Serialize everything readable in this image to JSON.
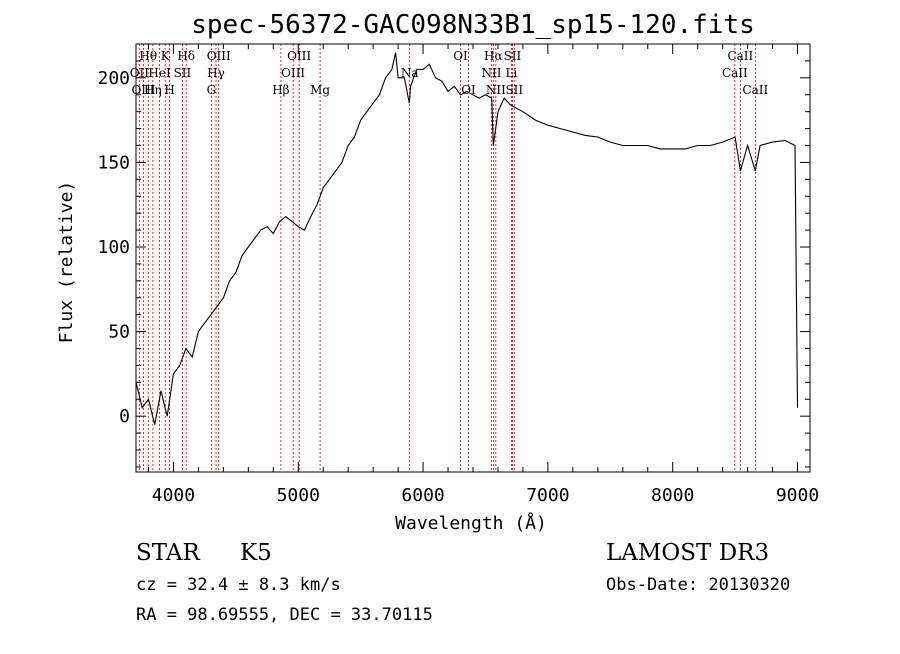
{
  "chart_data": {
    "type": "line",
    "title": "spec-56372-GAC098N33B1_sp15-120.fits",
    "xlabel": "Wavelength (Å)",
    "ylabel": "Flux (relative)",
    "xlim": [
      3700,
      9100
    ],
    "ylim": [
      -33,
      220
    ],
    "xticks": [
      4000,
      5000,
      6000,
      7000,
      8000,
      9000
    ],
    "yticks": [
      0,
      50,
      100,
      150,
      200
    ],
    "grid": false,
    "series": [
      {
        "x": [
          3700,
          3750,
          3800,
          3850,
          3900,
          3950,
          4000,
          4050,
          4100,
          4150,
          4200,
          4250,
          4300,
          4350,
          4400,
          4450,
          4500,
          4550,
          4600,
          4650,
          4700,
          4750,
          4800,
          4850,
          4900,
          4950,
          5000,
          5050,
          5100,
          5150,
          5200,
          5250,
          5300,
          5350,
          5400,
          5450,
          5500,
          5550,
          5600,
          5650,
          5700,
          5750,
          5780,
          5800,
          5850,
          5890,
          5900,
          5950,
          6000,
          6050,
          6100,
          6150,
          6200,
          6250,
          6300,
          6350,
          6400,
          6450,
          6500,
          6550,
          6563,
          6600,
          6650,
          6700,
          6750,
          6800,
          6900,
          7000,
          7100,
          7200,
          7300,
          7400,
          7500,
          7600,
          7700,
          7800,
          7900,
          8000,
          8100,
          8200,
          8300,
          8400,
          8500,
          8542,
          8600,
          8662,
          8700,
          8800,
          8900,
          8980,
          9000
        ],
        "y": [
          20,
          5,
          10,
          -5,
          15,
          0,
          25,
          30,
          40,
          35,
          50,
          55,
          60,
          65,
          70,
          80,
          85,
          95,
          100,
          105,
          110,
          112,
          108,
          115,
          118,
          115,
          112,
          110,
          118,
          125,
          135,
          140,
          145,
          150,
          160,
          165,
          175,
          180,
          185,
          190,
          200,
          205,
          215,
          200,
          200,
          185,
          195,
          205,
          205,
          208,
          200,
          198,
          192,
          195,
          190,
          192,
          190,
          188,
          190,
          188,
          160,
          180,
          188,
          184,
          182,
          180,
          175,
          172,
          170,
          168,
          166,
          165,
          162,
          160,
          160,
          160,
          158,
          158,
          158,
          160,
          160,
          162,
          165,
          145,
          160,
          145,
          160,
          162,
          163,
          160,
          5
        ]
      }
    ],
    "spectral_lines": [
      {
        "name": "Hθ",
        "x": 3798,
        "row": 0
      },
      {
        "name": "OII",
        "x": 3727,
        "row": 1
      },
      {
        "name": "OIII",
        "x": 3760,
        "row": 2
      },
      {
        "name": "Hη",
        "x": 3835,
        "row": 2
      },
      {
        "name": "HeI",
        "x": 3889,
        "row": 1
      },
      {
        "name": "K",
        "x": 3934,
        "row": 0
      },
      {
        "name": "H",
        "x": 3969,
        "row": 2
      },
      {
        "name": "SII",
        "x": 4072,
        "row": 1
      },
      {
        "name": "Hδ",
        "x": 4102,
        "row": 0
      },
      {
        "name": "OIII",
        "x": 4363,
        "row": 0
      },
      {
        "name": "Hγ",
        "x": 4341,
        "row": 1
      },
      {
        "name": "G",
        "x": 4304,
        "row": 2
      },
      {
        "name": "Hβ",
        "x": 4861,
        "row": 2
      },
      {
        "name": "OIII",
        "x": 5007,
        "row": 0
      },
      {
        "name": "OIII",
        "x": 4959,
        "row": 1
      },
      {
        "name": "Mg",
        "x": 5175,
        "row": 2
      },
      {
        "name": "Na",
        "x": 5893,
        "row": 1
      },
      {
        "name": "OI",
        "x": 6300,
        "row": 0
      },
      {
        "name": "OI",
        "x": 6364,
        "row": 2
      },
      {
        "name": "Hα",
        "x": 6563,
        "row": 0
      },
      {
        "name": "NII",
        "x": 6548,
        "row": 1
      },
      {
        "name": "NII",
        "x": 6583,
        "row": 2
      },
      {
        "name": "SII",
        "x": 6716,
        "row": 0
      },
      {
        "name": "Li",
        "x": 6708,
        "row": 1
      },
      {
        "name": "SII",
        "x": 6731,
        "row": 2
      },
      {
        "name": "CaII",
        "x": 8542,
        "row": 0
      },
      {
        "name": "CaII",
        "x": 8498,
        "row": 1
      },
      {
        "name": "CaII",
        "x": 8662,
        "row": 2
      }
    ]
  },
  "info": {
    "object_class": "STAR",
    "subclass": "K5",
    "survey": "LAMOST DR3",
    "cz": "cz = 32.4 ± 8.3 km/s",
    "obs_date": "Obs-Date: 20130320",
    "coords": "RA =  98.69555, DEC =  33.70115"
  },
  "colors": {
    "spectrum": "#000000",
    "line_markers": "#cc0000"
  }
}
